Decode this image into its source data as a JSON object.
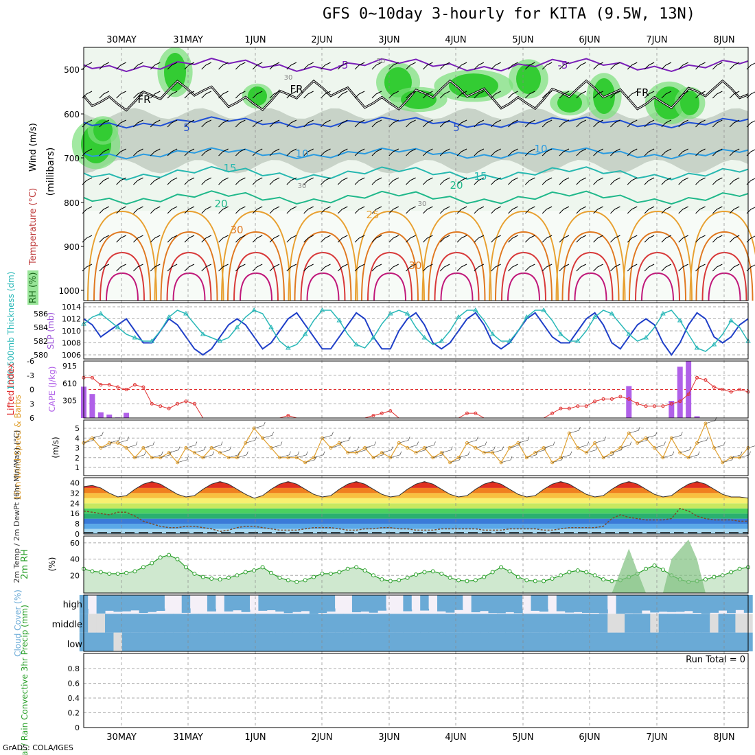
{
  "title": "GFS 0~10day 3-hourly for KITA (9.5W, 13N)",
  "credit": "GrADS: COLA/IGES",
  "run_total": "Run Total = 0",
  "colors": {
    "rh_dark": "#33cc33",
    "rh_mid": "#7ae07a",
    "rh_light": "#d8efd8",
    "rh_gray": "#b8c4b8",
    "wind": "#000000",
    "temp_m5": "#7a1fb8",
    "temp_5": "#1f4fd6",
    "temp_10": "#2a9be0",
    "temp_15": "#27b8b0",
    "temp_20": "#1fb88a",
    "temp_25": "#e8a030",
    "temp_30": "#e07820",
    "temp_35": "#d83838",
    "temp_40": "#c0187a",
    "slp": "#1f3fc8",
    "thickness": "#2ab8b8",
    "lifted": "#e03030",
    "cape": "#b060e8",
    "wind10": "#e0a030",
    "dewpt": "#7a4a2a",
    "rh2m": "#2aa02a",
    "cloud": "#6aaad6",
    "grid": "#aaaaaa"
  },
  "x_labels": [
    "30MAY",
    "31MAY",
    "1JUN",
    "2JUN",
    "3JUN",
    "4JUN",
    "5JUN",
    "6JUN",
    "7JUN",
    "8JUN"
  ],
  "panels": {
    "upper": {
      "ylabel_parts": [
        "RH (%)",
        "Temperature (°C)",
        "Wind (m/s)"
      ],
      "axis_title": "(millibars)",
      "y_ticks": [
        "500",
        "600",
        "700",
        "800",
        "900",
        "1000"
      ],
      "contour_labels": [
        "-5",
        "-5",
        "5",
        "5",
        "10",
        "10",
        "15",
        "15",
        "20",
        "20",
        "25",
        "30",
        "30",
        "FR",
        "FR",
        "FR",
        "50",
        "30",
        "30",
        "30"
      ]
    },
    "slp": {
      "ylabel_left": "1000-500mb Thickness (dm)",
      "ylabel_right": "SLP (mb)",
      "left_ticks": [
        "586",
        "584",
        "582",
        "580"
      ],
      "right_ticks": [
        "1014",
        "1012",
        "1010",
        "1008",
        "1006"
      ]
    },
    "cape": {
      "ylabel_left": "Lifted Index",
      "ylabel_right": "CAPE (J/kg)",
      "left_ticks": [
        "-6",
        "-3",
        "0",
        "3",
        "6"
      ],
      "right_ticks": [
        "915",
        "610",
        "305"
      ]
    },
    "wind10": {
      "ylabel": "10m Wind Speed & Barbs",
      "units": "(m/s)",
      "ticks": [
        "5",
        "4",
        "3",
        "2",
        "1"
      ]
    },
    "temp2m": {
      "ylabel": "2m Temp / 2m DewPt (6hr Min/Max) (°C)",
      "ticks": [
        "40",
        "32",
        "24",
        "16",
        "8",
        "0"
      ]
    },
    "rh2m": {
      "ylabel": "2m RH",
      "units": "(%)",
      "ticks": [
        "60",
        "40",
        "20"
      ]
    },
    "cloud": {
      "ylabel": "Cloud Cover (%)",
      "levels": [
        "high",
        "middle",
        "low"
      ]
    },
    "precip": {
      "ylabel": "Total / Rain Convective 3hr Precip (mm)",
      "ticks": [
        "0.8",
        "0.6",
        "0.4",
        "0.2",
        "0"
      ]
    }
  },
  "chart_data": [
    {
      "type": "line",
      "title": "SLP and 1000-500mb Thickness",
      "x": [
        "29MAY12",
        "29MAY15",
        "29MAY18",
        "29MAY21",
        "30MAY00",
        "30MAY03",
        "30MAY06",
        "30MAY09",
        "30MAY12",
        "30MAY15",
        "30MAY18",
        "30MAY21",
        "31MAY00",
        "31MAY03",
        "31MAY06",
        "31MAY09",
        "31MAY12",
        "31MAY15",
        "31MAY18",
        "31MAY21",
        "1JUN00",
        "1JUN03",
        "1JUN06",
        "1JUN09",
        "1JUN12",
        "1JUN15",
        "1JUN18",
        "1JUN21",
        "2JUN00",
        "2JUN03",
        "2JUN06",
        "2JUN09",
        "2JUN12",
        "2JUN15",
        "2JUN18",
        "2JUN21",
        "3JUN00",
        "3JUN03",
        "3JUN06",
        "3JUN09",
        "3JUN12",
        "3JUN15",
        "3JUN18",
        "3JUN21",
        "4JUN00",
        "4JUN03",
        "4JUN06",
        "4JUN09",
        "4JUN12",
        "4JUN15",
        "4JUN18",
        "4JUN21",
        "5JUN00",
        "5JUN03",
        "5JUN06",
        "5JUN09",
        "5JUN12",
        "5JUN15",
        "5JUN18",
        "5JUN21",
        "6JUN00",
        "6JUN03",
        "6JUN06",
        "6JUN09",
        "6JUN12",
        "6JUN15",
        "6JUN18",
        "6JUN21",
        "7JUN00",
        "7JUN03",
        "7JUN06",
        "7JUN09",
        "7JUN12",
        "7JUN15",
        "7JUN18",
        "7JUN21",
        "8JUN00",
        "8JUN03",
        "8JUN06"
      ],
      "series": [
        {
          "name": "SLP (mb)",
          "values": [
            1012,
            1011,
            1009,
            1010,
            1011,
            1012,
            1010,
            1008,
            1008,
            1010,
            1012,
            1011,
            1009,
            1007,
            1006,
            1007,
            1009,
            1011,
            1012,
            1011,
            1009,
            1007,
            1008,
            1010,
            1012,
            1013,
            1011,
            1009,
            1007,
            1007,
            1009,
            1011,
            1013,
            1012,
            1009,
            1007,
            1007,
            1010,
            1012,
            1013,
            1011,
            1008,
            1007,
            1008,
            1010,
            1012,
            1013,
            1011,
            1008,
            1007,
            1008,
            1010,
            1012,
            1013,
            1011,
            1009,
            1008,
            1008,
            1010,
            1012,
            1013,
            1011,
            1008,
            1007,
            1009,
            1011,
            1012,
            1011,
            1008,
            1006,
            1008,
            1011,
            1013,
            1012,
            1009,
            1008,
            1009,
            1011,
            1012
          ]
        },
        {
          "name": "Thickness (dm)",
          "values": [
            584.5,
            585.5,
            586,
            585,
            584,
            583,
            582.5,
            582,
            582,
            583.5,
            585.5,
            586.5,
            586,
            584.5,
            583,
            582.5,
            582,
            582.5,
            584,
            585.5,
            586.5,
            586,
            584,
            582,
            581,
            581.5,
            583,
            585,
            586.5,
            586.5,
            585,
            583,
            581.5,
            581,
            582.5,
            584.5,
            586,
            586.5,
            586,
            584,
            582.5,
            581.5,
            582,
            583.5,
            585.5,
            586.5,
            586.5,
            585,
            583,
            582,
            582,
            583.5,
            585.5,
            586.5,
            586.5,
            585,
            583,
            582,
            582,
            583.5,
            585.5,
            586.5,
            586,
            584.5,
            583,
            582,
            582.5,
            584,
            586,
            586.5,
            585,
            583,
            581,
            580.5,
            581.5,
            583,
            585,
            584,
            582
          ]
        }
      ]
    },
    {
      "type": "bar",
      "title": "Lifted Index / CAPE",
      "series": [
        {
          "name": "Lifted Index",
          "values": [
            -2.5,
            -2.5,
            -1,
            -1,
            -0.5,
            0,
            -1,
            -0.5,
            3,
            3.5,
            4,
            3,
            2.5,
            3,
            6,
            6,
            6,
            6,
            6,
            6,
            6,
            6,
            6,
            6,
            5.5,
            6,
            6,
            6,
            6,
            6,
            6,
            6,
            6,
            6,
            5.5,
            5,
            4.5,
            6,
            6,
            6,
            6,
            6,
            6,
            6,
            6,
            5,
            5,
            6,
            6,
            6,
            6,
            6,
            6,
            6,
            6,
            5,
            4,
            4,
            3.5,
            3.5,
            2.5,
            2,
            2,
            1.5,
            2,
            3,
            3.5,
            3.5,
            3.5,
            3,
            2.5,
            1,
            -2.5,
            -2,
            -0.5,
            0,
            0.5,
            0,
            0.5
          ]
        },
        {
          "name": "CAPE (J/kg)",
          "values": [
            550,
            420,
            100,
            60,
            10,
            90,
            0,
            0,
            0,
            0,
            0,
            0,
            0,
            0,
            0,
            0,
            0,
            0,
            0,
            0,
            0,
            0,
            0,
            0,
            0,
            0,
            0,
            0,
            0,
            0,
            0,
            0,
            0,
            0,
            0,
            0,
            0,
            0,
            0,
            0,
            0,
            0,
            0,
            0,
            0,
            0,
            0,
            0,
            0,
            0,
            0,
            0,
            0,
            0,
            0,
            0,
            0,
            0,
            0,
            0,
            0,
            0,
            0,
            0,
            0,
            0,
            0,
            0,
            0,
            0,
            0,
            0,
            0,
            0,
            0,
            0,
            0,
            0,
            0
          ]
        }
      ]
    },
    {
      "type": "line",
      "title": "10m Wind Speed",
      "series": [
        {
          "name": "10m Wind Speed (m/s)",
          "values": [
            3.5,
            4,
            3,
            3.5,
            3.5,
            3,
            2,
            3,
            2,
            2,
            2.5,
            1.5,
            3,
            2.5,
            2,
            3,
            2.5,
            2,
            2,
            3.5,
            5,
            4,
            3,
            2,
            2,
            2,
            1.5,
            2,
            4,
            3,
            3.5,
            2.5,
            2.5,
            3,
            2,
            2.5,
            2,
            3.5,
            3,
            2.5,
            3,
            2,
            2.5,
            1.5,
            2,
            3.5,
            3,
            2.5,
            2.5,
            1.5,
            3,
            3.5,
            2,
            2.5,
            3,
            1.5,
            2,
            4.5,
            3,
            2.5,
            3.5,
            2,
            2.5,
            3,
            4.5,
            3.5,
            4,
            3,
            2,
            4,
            2.5,
            2,
            3.5,
            5.5,
            3,
            1.5,
            2,
            2,
            3
          ]
        }
      ]
    },
    {
      "type": "line",
      "title": "2m Temp / DewPt",
      "series": [
        {
          "name": "2m Temp (°C)",
          "values": [
            37,
            38,
            36,
            32,
            29,
            30,
            35,
            39,
            41,
            39,
            35,
            31,
            29,
            30,
            35,
            39,
            41,
            39,
            35,
            31,
            28,
            30,
            35,
            39,
            41,
            39,
            35,
            31,
            29,
            30,
            35,
            39,
            41,
            39,
            35,
            31,
            29,
            30,
            35,
            39,
            41,
            39,
            35,
            31,
            29,
            30,
            35,
            39,
            41,
            39,
            35,
            31,
            29,
            30,
            35,
            39,
            41,
            39,
            35,
            31,
            29,
            30,
            35,
            39,
            41,
            39,
            35,
            31,
            29,
            30,
            35,
            39,
            41,
            39,
            35,
            31,
            29,
            29,
            28
          ]
        },
        {
          "name": "2m DewPt (°C)",
          "values": [
            18,
            17,
            16,
            15,
            17,
            17,
            14,
            10,
            8,
            6,
            5,
            5,
            6,
            6,
            5,
            4,
            2,
            3,
            5,
            6,
            6,
            5,
            4,
            3,
            3,
            3,
            4,
            5,
            5,
            5,
            4,
            3,
            3,
            4,
            4,
            5,
            5,
            4,
            4,
            3,
            3,
            3,
            4,
            4,
            4,
            4,
            4,
            3,
            3,
            3,
            4,
            4,
            4,
            4,
            3,
            3,
            4,
            5,
            5,
            5,
            5,
            6,
            12,
            15,
            13,
            12,
            11,
            11,
            11,
            12,
            20,
            18,
            14,
            12,
            11,
            11,
            11,
            10,
            10
          ]
        }
      ]
    },
    {
      "type": "area",
      "title": "2m RH",
      "series": [
        {
          "name": "2m RH (%)",
          "values": [
            28,
            25,
            24,
            22,
            22,
            23,
            25,
            30,
            35,
            42,
            45,
            40,
            30,
            22,
            18,
            16,
            15,
            17,
            20,
            24,
            26,
            30,
            23,
            17,
            14,
            12,
            14,
            18,
            22,
            22,
            24,
            28,
            30,
            26,
            20,
            15,
            13,
            14,
            17,
            21,
            24,
            25,
            22,
            17,
            14,
            13,
            14,
            18,
            24,
            30,
            25,
            18,
            14,
            13,
            13,
            16,
            20,
            24,
            26,
            24,
            20,
            15,
            13,
            14,
            18,
            22,
            28,
            32,
            27,
            20,
            15,
            12,
            13,
            15,
            18,
            20,
            24,
            28,
            30
          ]
        }
      ]
    },
    {
      "type": "heatmap",
      "title": "Cloud Cover",
      "levels": [
        "high",
        "middle",
        "low"
      ],
      "ylim_precip": [
        0,
        1
      ],
      "precip_total_mm": 0
    }
  ]
}
